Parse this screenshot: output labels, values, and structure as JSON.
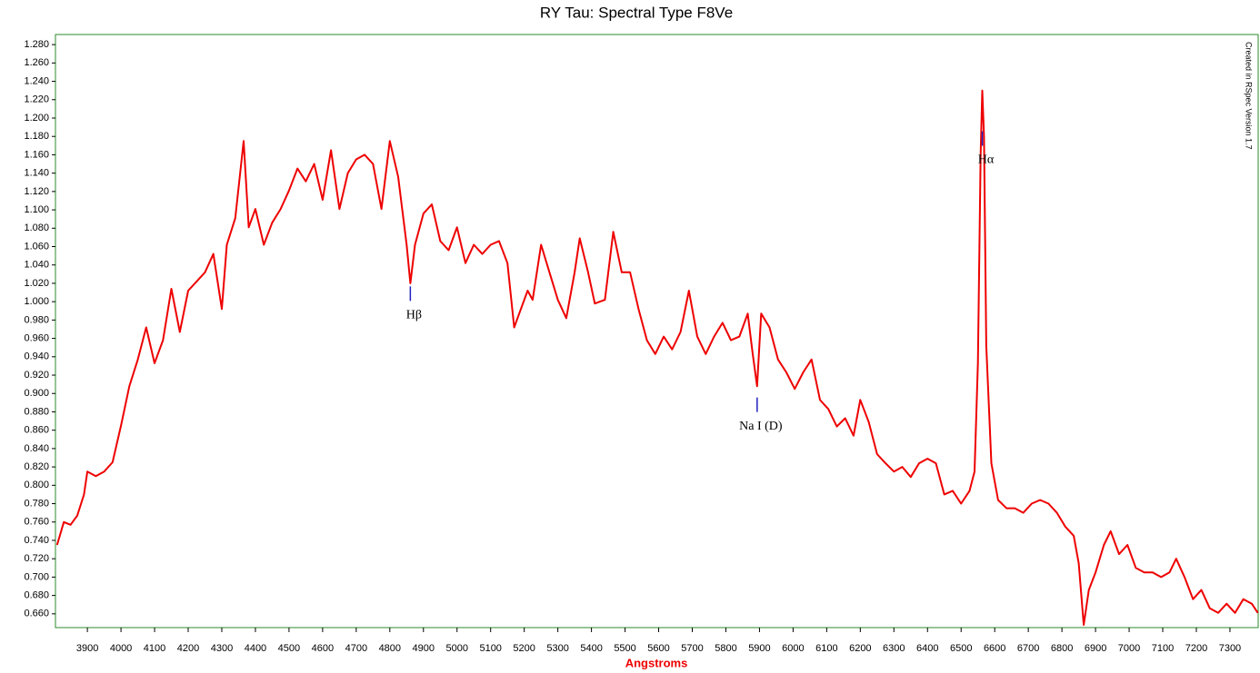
{
  "chart_data": {
    "type": "line",
    "title": "RY Tau: Spectral Type F8Ve",
    "x_label": "Angstroms",
    "watermark": "Created in RSpec Version 1.7",
    "color": "#ee0000",
    "frame_color": "#2e8b2e",
    "xlim": [
      3805,
      7384
    ],
    "ylim": [
      0.645,
      1.291
    ],
    "xticks": [
      3900,
      4000,
      4100,
      4200,
      4300,
      4400,
      4500,
      4600,
      4700,
      4800,
      4900,
      5000,
      5100,
      5200,
      5300,
      5400,
      5500,
      5600,
      5700,
      5800,
      5900,
      6000,
      6100,
      6200,
      6300,
      6400,
      6500,
      6600,
      6700,
      6800,
      6900,
      7000,
      7100,
      7200,
      7300
    ],
    "yticks": [
      {
        "value": 0.66,
        "label": "0.660"
      },
      {
        "value": 0.68,
        "label": "0.680"
      },
      {
        "value": 0.7,
        "label": "0.700"
      },
      {
        "value": 0.72,
        "label": "0.720"
      },
      {
        "value": 0.74,
        "label": "0.740"
      },
      {
        "value": 0.76,
        "label": "0.760"
      },
      {
        "value": 0.78,
        "label": "0.780"
      },
      {
        "value": 0.8,
        "label": "0.800"
      },
      {
        "value": 0.82,
        "label": "0.820"
      },
      {
        "value": 0.84,
        "label": "0.840"
      },
      {
        "value": 0.86,
        "label": "0.860"
      },
      {
        "value": 0.88,
        "label": "0.880"
      },
      {
        "value": 0.9,
        "label": "0.900"
      },
      {
        "value": 0.92,
        "label": "0.920"
      },
      {
        "value": 0.94,
        "label": "0.940"
      },
      {
        "value": 0.96,
        "label": "0.960"
      },
      {
        "value": 0.98,
        "label": "0.980"
      },
      {
        "value": 1.0,
        "label": "1.000"
      },
      {
        "value": 1.02,
        "label": "1.020"
      },
      {
        "value": 1.04,
        "label": "1.040"
      },
      {
        "value": 1.06,
        "label": "1.060"
      },
      {
        "value": 1.08,
        "label": "1.080"
      },
      {
        "value": 1.1,
        "label": "1.100"
      },
      {
        "value": 1.12,
        "label": "1.120"
      },
      {
        "value": 1.14,
        "label": "1.140"
      },
      {
        "value": 1.16,
        "label": "1.160"
      },
      {
        "value": 1.18,
        "label": "1.180"
      },
      {
        "value": 1.2,
        "label": "1.200"
      },
      {
        "value": 1.22,
        "label": "1.220"
      },
      {
        "value": 1.24,
        "label": "1.240"
      },
      {
        "value": 1.26,
        "label": "1.260"
      },
      {
        "value": 1.28,
        "label": "1.280"
      }
    ],
    "x": [
      3810,
      3830,
      3850,
      3870,
      3890,
      3900,
      3925,
      3950,
      3975,
      4000,
      4025,
      4050,
      4075,
      4100,
      4125,
      4150,
      4175,
      4200,
      4225,
      4250,
      4275,
      4300,
      4315,
      4340,
      4365,
      4380,
      4400,
      4425,
      4450,
      4475,
      4500,
      4525,
      4550,
      4575,
      4600,
      4625,
      4650,
      4675,
      4700,
      4725,
      4750,
      4775,
      4800,
      4825,
      4850,
      4861,
      4875,
      4900,
      4925,
      4950,
      4975,
      5000,
      5025,
      5050,
      5075,
      5100,
      5125,
      5150,
      5170,
      5190,
      5210,
      5225,
      5250,
      5275,
      5300,
      5325,
      5350,
      5365,
      5390,
      5410,
      5440,
      5465,
      5490,
      5515,
      5540,
      5565,
      5590,
      5615,
      5640,
      5665,
      5690,
      5715,
      5740,
      5765,
      5790,
      5815,
      5840,
      5865,
      5880,
      5893,
      5905,
      5930,
      5955,
      5980,
      6005,
      6030,
      6055,
      6080,
      6105,
      6130,
      6155,
      6180,
      6200,
      6225,
      6250,
      6275,
      6300,
      6325,
      6350,
      6375,
      6400,
      6425,
      6450,
      6475,
      6500,
      6525,
      6540,
      6550,
      6558,
      6563,
      6568,
      6575,
      6590,
      6610,
      6635,
      6660,
      6685,
      6710,
      6735,
      6760,
      6785,
      6810,
      6835,
      6850,
      6865,
      6880,
      6900,
      6925,
      6945,
      6970,
      6995,
      7020,
      7045,
      7070,
      7095,
      7120,
      7140,
      7165,
      7190,
      7215,
      7240,
      7265,
      7290,
      7315,
      7340,
      7365,
      7383
    ],
    "values": [
      0.735,
      0.76,
      0.757,
      0.767,
      0.79,
      0.815,
      0.81,
      0.815,
      0.825,
      0.865,
      0.908,
      0.937,
      0.972,
      0.933,
      0.958,
      1.014,
      0.967,
      1.012,
      1.022,
      1.032,
      1.052,
      0.992,
      1.062,
      1.091,
      1.175,
      1.081,
      1.101,
      1.062,
      1.086,
      1.101,
      1.121,
      1.145,
      1.131,
      1.15,
      1.111,
      1.165,
      1.101,
      1.14,
      1.155,
      1.16,
      1.15,
      1.101,
      1.175,
      1.136,
      1.062,
      1.02,
      1.062,
      1.096,
      1.106,
      1.066,
      1.056,
      1.081,
      1.042,
      1.062,
      1.052,
      1.062,
      1.066,
      1.042,
      0.972,
      0.992,
      1.012,
      1.002,
      1.062,
      1.032,
      1.002,
      0.982,
      1.032,
      1.069,
      1.032,
      0.998,
      1.002,
      1.076,
      1.032,
      1.032,
      0.992,
      0.958,
      0.943,
      0.962,
      0.948,
      0.967,
      1.012,
      0.962,
      0.943,
      0.962,
      0.977,
      0.958,
      0.962,
      0.987,
      0.943,
      0.908,
      0.987,
      0.972,
      0.937,
      0.923,
      0.905,
      0.923,
      0.937,
      0.893,
      0.883,
      0.864,
      0.873,
      0.854,
      0.893,
      0.869,
      0.834,
      0.824,
      0.815,
      0.82,
      0.809,
      0.824,
      0.829,
      0.824,
      0.79,
      0.794,
      0.78,
      0.794,
      0.815,
      0.933,
      1.16,
      1.23,
      1.18,
      0.952,
      0.824,
      0.784,
      0.775,
      0.775,
      0.77,
      0.78,
      0.784,
      0.78,
      0.77,
      0.755,
      0.745,
      0.715,
      0.648,
      0.686,
      0.705,
      0.735,
      0.75,
      0.725,
      0.735,
      0.71,
      0.705,
      0.705,
      0.7,
      0.705,
      0.72,
      0.7,
      0.676,
      0.686,
      0.666,
      0.661,
      0.671,
      0.661,
      0.676,
      0.671,
      0.661
    ],
    "annotations": [
      {
        "text": "Hβ",
        "x": 4861,
        "y": 0.985
      },
      {
        "text": "Na I (D)",
        "x": 5893,
        "y": 0.864
      },
      {
        "text": "Hα",
        "x": 6563,
        "y": 1.154
      }
    ]
  }
}
